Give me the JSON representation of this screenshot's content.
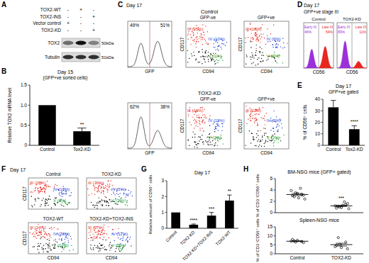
{
  "panel_labels": [
    "A",
    "B",
    "C",
    "D",
    "E",
    "F",
    "G",
    "H"
  ],
  "blot": {
    "rows": [
      {
        "label": "TOX2-WT",
        "signs": [
          "-",
          "+",
          "-"
        ]
      },
      {
        "label": "TOX2-INS",
        "signs": [
          "-",
          "-",
          "+"
        ]
      },
      {
        "label": "Vector control",
        "signs": [
          "+",
          "-",
          "-"
        ]
      },
      {
        "label": "TOX2-KD",
        "signs": [
          "-",
          "-",
          "+"
        ]
      }
    ],
    "bands": [
      {
        "label": "TOX2",
        "size": "50kDa"
      },
      {
        "label": "Tubulin",
        "size": "51kDa"
      }
    ]
  },
  "flow_c": {
    "title": "Day 17",
    "hist_x_label": "GFP",
    "x_label": "CD94",
    "y_label": "CD117",
    "samples": [
      {
        "name": "Control",
        "hist": [
          "49%",
          "51%"
        ],
        "plots": [
          {
            "title": "GFP-ve",
            "gates": [
              "III (25%)",
              "IV (10%)",
              "V (1%)"
            ]
          },
          {
            "title": "GFP+ve",
            "gates": [
              "III (18%)",
              "IV (9%)",
              "V (1%)"
            ]
          }
        ]
      },
      {
        "name": "TOX2-KD",
        "hist": [
          "62%",
          "38%"
        ],
        "plots": [
          {
            "title": "GFP-ve",
            "gates": [
              "III (16%)",
              "IV (11%)",
              "V (2%)"
            ]
          },
          {
            "title": "GFP+ve",
            "gates": [
              "III (11%)",
              "IV (3%)",
              "V (0%)"
            ]
          }
        ]
      }
    ]
  },
  "flow_d": {
    "title": "Day 17",
    "subtitle": "GFP+ve stage III",
    "x_label": "CD56",
    "samples": [
      {
        "name": "Control",
        "early": [
          "Early III",
          "46%"
        ],
        "late": [
          "Late III",
          "54%"
        ]
      },
      {
        "name": "TOX2-KD",
        "early": [
          "Early III",
          "89%"
        ],
        "late": [
          "Late III",
          "11%"
        ]
      }
    ]
  },
  "flow_f": {
    "title": "Day 17",
    "x_label": "CD94",
    "y_label": "CD117",
    "plots": [
      {
        "name": "Control",
        "gates": [
          "III (26%)",
          "IV (18%)",
          "V (8%)"
        ]
      },
      {
        "name": "TOX2-KD",
        "gates": [
          "III (36%)",
          "IV (5%)",
          "V (3%)"
        ]
      },
      {
        "name": "TOX2-WT",
        "gates": [
          "III (24%)",
          "IV (28%)",
          "V (13%)"
        ]
      },
      {
        "name": "TOX2-KD+TOX2-INS",
        "gates": [
          "III (37%)",
          "IV (17%)",
          "V (5%)"
        ]
      }
    ]
  },
  "chart_data": [
    {
      "type": "bar",
      "title": "Day 15",
      "subtitle": "(GFP+ve sorted cells)",
      "y_label": "Relative TOX2 mRNA level",
      "categories": [
        "Control",
        "Tox2-KD"
      ],
      "values": [
        1.0,
        0.35
      ],
      "errors": [
        0,
        0.08
      ],
      "color": "#000000",
      "ylim": [
        0,
        1.5
      ],
      "yticks": [
        0,
        0.5,
        {
          "value": 1,
          "label": "1.0"
        },
        1.5
      ],
      "annotations": [
        {
          "category": 1,
          "text": "**"
        }
      ]
    },
    {
      "type": "bar",
      "title": "Day 17",
      "subtitle": "GFP+ve gated",
      "y_label": "% of CD56⁺ cells",
      "categories": [
        "Control",
        "Tox2-KD"
      ],
      "values": [
        33,
        14
      ],
      "errors": [
        6,
        3
      ],
      "color": "#000000",
      "ylim": [
        0,
        40
      ],
      "yticks": [
        0,
        10,
        20,
        30,
        40
      ],
      "annotations": [
        {
          "category": 1,
          "text": "****"
        }
      ]
    },
    {
      "type": "bar",
      "title": "Day 17",
      "y_label": "Relative amount of CD56⁺ cells",
      "categories": [
        "Control",
        "TOX2-KD",
        "TOX2-KD+TOX2-INS",
        "TOX2-WT"
      ],
      "values": [
        1,
        0.22,
        0.8,
        1.75
      ],
      "errors": [
        0,
        0.05,
        0.2,
        0.35
      ],
      "color": "#000000",
      "ylim": [
        0,
        3
      ],
      "yticks": [
        0,
        1,
        2,
        3
      ],
      "annotations": [
        {
          "category": 1,
          "text": "****"
        },
        {
          "category": 2,
          "text": "***"
        },
        {
          "category": 3,
          "text": "**"
        }
      ]
    },
    {
      "type": "scatter",
      "title": "BM-NSG mice (GFP+ gated)",
      "y_label": "% of CD3⁻CD56⁺ cells",
      "tick_labels": "y",
      "points": [
        [
          3.9,
          3.5,
          3.4,
          3.2,
          3.1,
          3.0,
          2.8,
          2.6,
          4.3,
          2.4
        ],
        [
          1.2,
          1.0,
          0.9,
          1.4,
          1.6,
          0.8,
          1.1,
          1.3,
          1.9,
          0.7
        ]
      ],
      "means": [
        3.2,
        1.2
      ],
      "errors": [
        0.2,
        0.12
      ],
      "color": "#000000",
      "ylim": [
        0,
        6
      ],
      "yticks": [
        0,
        2,
        4,
        6
      ],
      "annotations": [
        {
          "category": 1,
          "text": "***"
        }
      ]
    },
    {
      "type": "scatter",
      "title": "Spleen-NSG mice",
      "y_label": "% of CD3⁻CD56⁺ cells",
      "categories": [
        "Control",
        "TOX2-KD"
      ],
      "points": [
        [
          7.0,
          6.5,
          7.5,
          6.8,
          6.2,
          8.0,
          7.2
        ],
        [
          4.0,
          5.2,
          3.5,
          6.5,
          2.8,
          4.8,
          9.0
        ]
      ],
      "means": [
        7.0,
        5.1
      ],
      "errors": [
        0.25,
        0.8
      ],
      "color": "#000000",
      "ylim": [
        0,
        15
      ],
      "yticks": [
        0,
        5,
        10,
        15
      ]
    }
  ]
}
